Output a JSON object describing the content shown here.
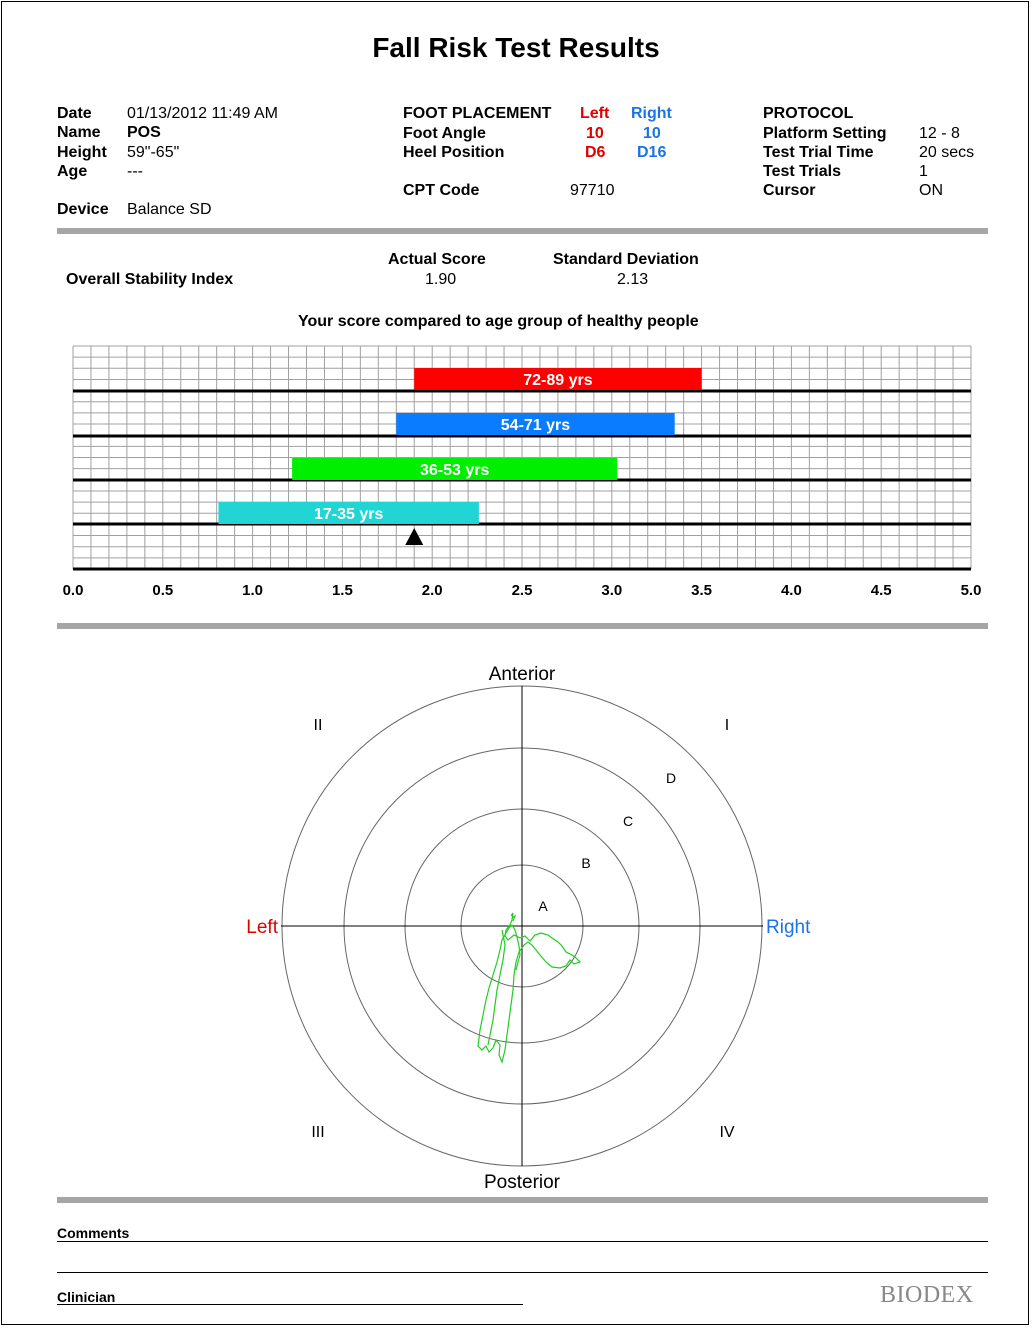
{
  "title": "Fall Risk Test Results",
  "info": {
    "date_label": "Date",
    "date_value": "01/13/2012 11:49 AM",
    "name_label": "Name",
    "name_value": "POS",
    "height_label": "Height",
    "height_value": "59\"-65\"",
    "age_label": "Age",
    "age_value": "---",
    "device_label": "Device",
    "device_value": "Balance SD"
  },
  "foot": {
    "header": "FOOT PLACEMENT",
    "left_label": "Left",
    "right_label": "Right",
    "angle_label": "Foot Angle",
    "angle_left": "10",
    "angle_right": "10",
    "heel_label": "Heel Position",
    "heel_left": "D6",
    "heel_right": "D16",
    "cpt_label": "CPT Code",
    "cpt_value": "97710"
  },
  "protocol": {
    "header": "PROTOCOL",
    "platform_label": "Platform Setting",
    "platform_value": "12 - 8",
    "time_label": "Test Trial Time",
    "time_value": "20 secs",
    "trials_label": "Test Trials",
    "trials_value": "1",
    "cursor_label": "Cursor",
    "cursor_value": "ON"
  },
  "scores": {
    "index_label": "Overall Stability Index",
    "actual_label": "Actual Score",
    "actual_value": "1.90",
    "sd_label": "Standard Deviation",
    "sd_value": "2.13",
    "compare_label": "Your score compared to age group of healthy people"
  },
  "chart_data": {
    "type": "bar",
    "orientation": "horizontal-range",
    "xlim": [
      0,
      5
    ],
    "ticks": [
      "0.0",
      "0.5",
      "1.0",
      "1.5",
      "2.0",
      "2.5",
      "3.0",
      "3.5",
      "4.0",
      "4.5",
      "5.0"
    ],
    "marker_value": 1.9,
    "series": [
      {
        "name": "72-89 yrs",
        "start": 1.9,
        "end": 3.5,
        "color": "#ff0000"
      },
      {
        "name": "54-71 yrs",
        "start": 1.8,
        "end": 3.35,
        "color": "#0a7cff"
      },
      {
        "name": "36-53 yrs",
        "start": 1.22,
        "end": 3.03,
        "color": "#00ee00"
      },
      {
        "name": "17-35 yrs",
        "start": 0.81,
        "end": 2.26,
        "color": "#22d5d5"
      }
    ]
  },
  "target": {
    "anterior": "Anterior",
    "posterior": "Posterior",
    "left": "Left",
    "right": "Right",
    "q1": "I",
    "q2": "II",
    "q3": "III",
    "q4": "IV",
    "zone_a": "A",
    "zone_b": "B",
    "zone_c": "C",
    "zone_d": "D",
    "left_color": "#e00000",
    "right_color": "#1a73e8",
    "trace_color": "#22cc22"
  },
  "footer": {
    "comments_label": "Comments",
    "clinician_label": "Clinician",
    "logo": "BIODEX"
  }
}
